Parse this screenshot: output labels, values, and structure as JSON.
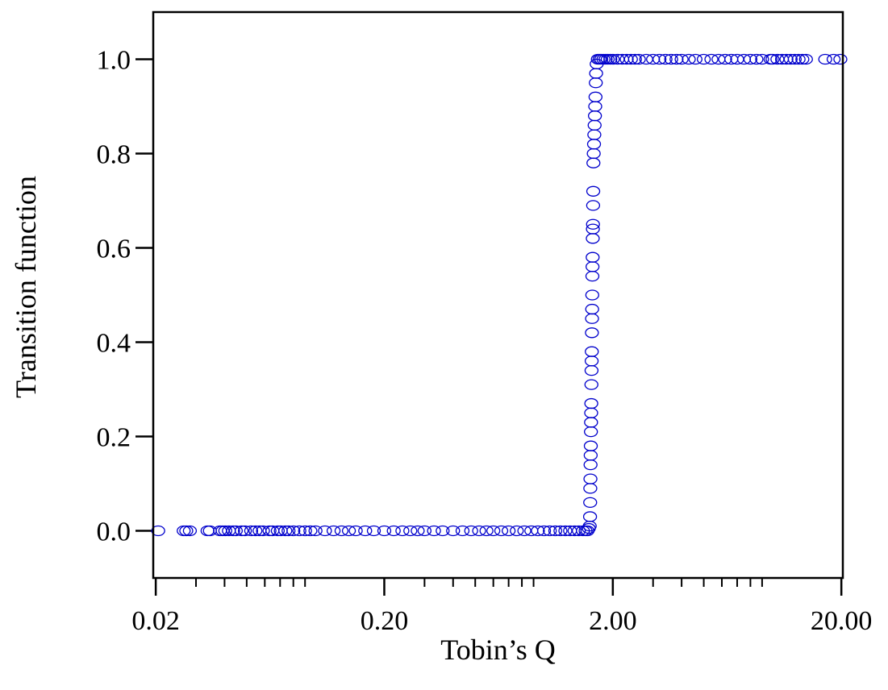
{
  "chart_data": {
    "type": "scatter",
    "xlabel": "Tobin’s Q",
    "ylabel": "Transition function",
    "x_scale": "log",
    "xlim": [
      0.0195,
      20.3
    ],
    "ylim": [
      -0.1,
      1.1
    ],
    "x_ticks": [
      0.02,
      0.2,
      2.0,
      20.0
    ],
    "x_tick_labels": [
      "0.02",
      "0.20",
      "2.00",
      "20.00"
    ],
    "y_ticks": [
      0.0,
      0.2,
      0.4,
      0.6,
      0.8,
      1.0
    ],
    "y_tick_labels": [
      "0.0",
      "0.2",
      "0.4",
      "0.6",
      "0.8",
      "1.0"
    ],
    "grid": false,
    "legend": "none",
    "marker": "open-circle",
    "color": "#0000cc",
    "points": {
      "x": [
        0.0205,
        0.0265,
        0.0272,
        0.0282,
        0.0337,
        0.0345,
        0.0382,
        0.0392,
        0.0403,
        0.0418,
        0.0436,
        0.0448,
        0.0475,
        0.0491,
        0.0523,
        0.0546,
        0.0569,
        0.0589,
        0.0629,
        0.0648,
        0.0684,
        0.0705,
        0.0738,
        0.0762,
        0.08,
        0.085,
        0.09,
        0.095,
        0.1,
        0.11,
        0.12,
        0.13,
        0.14,
        0.15,
        0.165,
        0.18,
        0.2,
        0.22,
        0.24,
        0.26,
        0.28,
        0.3,
        0.33,
        0.36,
        0.4,
        0.44,
        0.48,
        0.52,
        0.56,
        0.6,
        0.65,
        0.7,
        0.76,
        0.82,
        0.88,
        0.94,
        1.0,
        1.06,
        1.12,
        1.18,
        1.24,
        1.3,
        1.36,
        1.42,
        1.48,
        1.52,
        1.55,
        1.57,
        1.585,
        1.59,
        1.592,
        1.594,
        1.596,
        1.598,
        1.6,
        1.602,
        1.604,
        1.606,
        1.608,
        1.61,
        1.612,
        1.614,
        1.616,
        1.618,
        1.62,
        1.622,
        1.624,
        1.626,
        1.628,
        1.63,
        1.632,
        1.634,
        1.636,
        1.638,
        1.64,
        1.642,
        1.645,
        1.65,
        1.655,
        1.66,
        1.665,
        1.67,
        1.675,
        1.68,
        1.685,
        1.69,
        1.7,
        1.72,
        1.75,
        1.78,
        1.82,
        1.86,
        1.9,
        1.95,
        2.0,
        2.1,
        2.2,
        2.3,
        2.4,
        2.5,
        2.6,
        2.8,
        3.0,
        3.2,
        3.4,
        3.6,
        3.8,
        4.0,
        4.3,
        4.6,
        5.0,
        5.4,
        5.8,
        6.2,
        6.6,
        7.0,
        7.5,
        8.0,
        8.5,
        9.0,
        9.8,
        10.0,
        10.5,
        11.0,
        11.5,
        12.0,
        12.5,
        13.0,
        13.5,
        14.0,
        17.0,
        18.5,
        19.8
      ],
      "y": [
        0.0,
        0.0,
        0.0,
        0.0,
        0.0,
        0.0,
        0.0,
        0.0,
        0.0,
        0.0,
        0.0,
        0.0,
        0.0,
        0.0,
        0.0,
        0.0,
        0.0,
        0.0,
        0.0,
        0.0,
        0.0,
        0.0,
        0.0,
        0.0,
        0.0,
        0.0,
        0.0,
        0.0,
        0.0,
        0.0,
        0.0,
        0.0,
        0.0,
        0.0,
        0.0,
        0.0,
        0.0,
        0.0,
        0.0,
        0.0,
        0.0,
        0.0,
        0.0,
        0.0,
        0.0,
        0.0,
        0.0,
        0.0,
        0.0,
        0.0,
        0.0,
        0.0,
        0.0,
        0.0,
        0.0,
        0.0,
        0.0,
        0.0,
        0.0,
        0.0,
        0.0,
        0.0,
        0.0,
        0.0,
        0.0,
        0.0,
        0.0,
        0.005,
        0.01,
        0.03,
        0.06,
        0.09,
        0.11,
        0.14,
        0.16,
        0.18,
        0.21,
        0.23,
        0.25,
        0.27,
        0.31,
        0.34,
        0.36,
        0.38,
        0.42,
        0.45,
        0.47,
        0.5,
        0.54,
        0.56,
        0.58,
        0.62,
        0.64,
        0.65,
        0.69,
        0.72,
        0.78,
        0.8,
        0.82,
        0.84,
        0.86,
        0.88,
        0.9,
        0.92,
        0.95,
        0.97,
        0.99,
        1.0,
        1.0,
        1.0,
        1.0,
        1.0,
        1.0,
        1.0,
        1.0,
        1.0,
        1.0,
        1.0,
        1.0,
        1.0,
        1.0,
        1.0,
        1.0,
        1.0,
        1.0,
        1.0,
        1.0,
        1.0,
        1.0,
        1.0,
        1.0,
        1.0,
        1.0,
        1.0,
        1.0,
        1.0,
        1.0,
        1.0,
        1.0,
        1.0,
        1.0,
        1.0,
        1.0,
        1.0,
        1.0,
        1.0,
        1.0,
        1.0,
        1.0,
        1.0,
        1.0,
        1.0,
        1.0
      ]
    }
  }
}
